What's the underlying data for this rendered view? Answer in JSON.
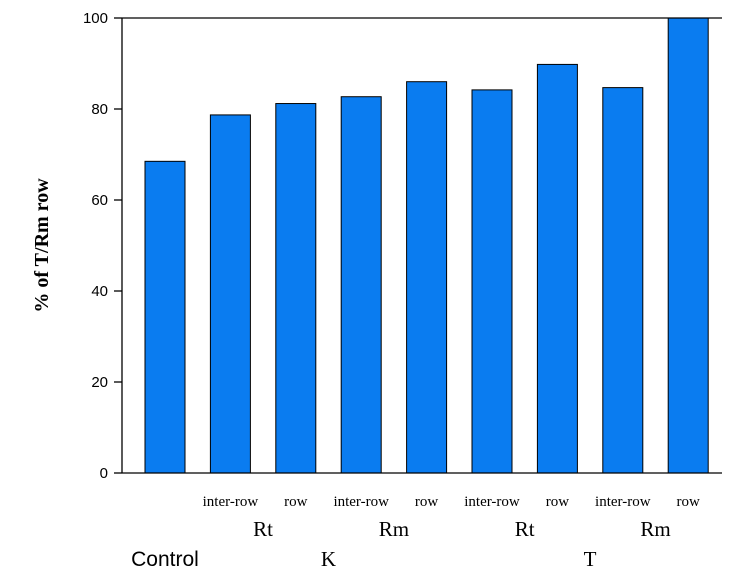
{
  "chart_data": {
    "type": "bar",
    "ylabel": "% of T/Rm row",
    "ylim": [
      0,
      100
    ],
    "yticks": [
      0,
      20,
      40,
      60,
      80,
      100
    ],
    "grid": false,
    "bar_color": "#0a7cf0",
    "categories": [
      "Control",
      "K Rt inter-row",
      "K Rt row",
      "K Rm inter-row",
      "K Rm row",
      "T Rt inter-row",
      "T Rt row",
      "T Rm inter-row",
      "T Rm row"
    ],
    "values": [
      68.5,
      78.7,
      81.2,
      82.7,
      86.0,
      84.2,
      89.8,
      84.7,
      100.0
    ],
    "bar_labels": [
      "",
      "inter-row",
      "row",
      "inter-row",
      "row",
      "inter-row",
      "row",
      "inter-row",
      "row"
    ],
    "subgroups": [
      {
        "label": "Rt",
        "bars": [
          1,
          2
        ]
      },
      {
        "label": "Rm",
        "bars": [
          3,
          4
        ]
      },
      {
        "label": "Rt",
        "bars": [
          5,
          6
        ]
      },
      {
        "label": "Rm",
        "bars": [
          7,
          8
        ]
      }
    ],
    "groups": [
      {
        "label": "Control",
        "bars": [
          0
        ]
      },
      {
        "label": "K",
        "bars": [
          1,
          2,
          3,
          4
        ]
      },
      {
        "label": "T",
        "bars": [
          5,
          6,
          7,
          8
        ]
      }
    ]
  }
}
